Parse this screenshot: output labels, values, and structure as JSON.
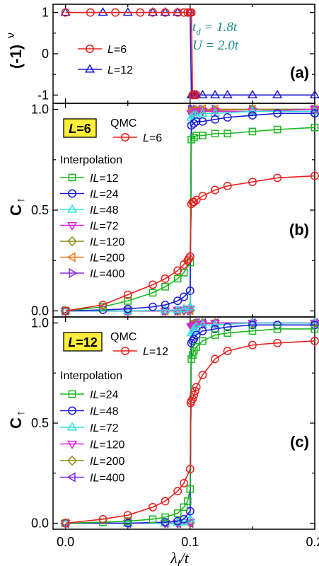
{
  "chart_data": [
    {
      "panel": "a",
      "type": "line",
      "panel_label": "(a)",
      "ylabel": "(-1)",
      "ylabel_sup": "ν",
      "xlim": [
        -0.01,
        0.2
      ],
      "ylim": [
        -1.2,
        1.2
      ],
      "yticks": [
        {
          "v": -1,
          "label": "-1"
        },
        {
          "v": 0,
          "label": "0"
        },
        {
          "v": 1,
          "label": "1"
        }
      ],
      "params": [
        "t",
        "d",
        " = 1.8t",
        "U = 2.0t"
      ],
      "series": [
        {
          "name": "L=6",
          "color": "#e8201c",
          "marker": "circle",
          "x": [
            0,
            0.02,
            0.04,
            0.06,
            0.07,
            0.08,
            0.09,
            0.095,
            0.098,
            0.1,
            0.101,
            0.102,
            0.103,
            0.105
          ],
          "y": [
            1,
            1,
            1,
            1,
            1,
            1,
            1,
            1,
            1,
            1,
            1,
            -1,
            -1,
            -1
          ]
        },
        {
          "name": "L=12",
          "color": "#1c1cd6",
          "marker": "triangle",
          "x": [
            0,
            0.03,
            0.05,
            0.07,
            0.08,
            0.09,
            0.1,
            0.101,
            0.102,
            0.103,
            0.104,
            0.105,
            0.11,
            0.12,
            0.13,
            0.15,
            0.17,
            0.2
          ],
          "y": [
            1,
            1,
            1,
            1,
            1,
            1,
            1,
            -1,
            -1,
            -1,
            -1,
            -1,
            -1,
            -1,
            -1,
            -1,
            -1,
            -1
          ]
        }
      ],
      "legend": [
        {
          "prefix": "",
          "var": "L",
          "text": "=6",
          "series": 0
        },
        {
          "prefix": "",
          "var": "L",
          "text": "=12",
          "series": 1
        }
      ]
    },
    {
      "panel": "b",
      "type": "line",
      "panel_label": "(b)",
      "ylabel": "C",
      "ylabel_sub": "↑",
      "xlim": [
        -0.01,
        0.2
      ],
      "ylim": [
        -0.03,
        1.03
      ],
      "yticks": [
        {
          "v": 0,
          "label": "0.0"
        },
        {
          "v": 0.5,
          "label": "0.5"
        },
        {
          "v": 1,
          "label": "1.0"
        }
      ],
      "box_label": "L=6",
      "qmc_label": "QMC",
      "interp_label": "Interpolation",
      "series": [
        {
          "name": "L=6",
          "color": "#e8201c",
          "marker": "circle",
          "x": [
            0,
            0.03,
            0.05,
            0.07,
            0.08,
            0.09,
            0.095,
            0.098,
            0.099,
            0.1,
            0.101,
            0.102,
            0.103,
            0.105,
            0.11,
            0.12,
            0.13,
            0.15,
            0.17,
            0.2
          ],
          "y": [
            0,
            0.03,
            0.08,
            0.13,
            0.16,
            0.2,
            0.23,
            0.25,
            0.26,
            0.27,
            0.53,
            0.54,
            0.54,
            0.55,
            0.57,
            0.6,
            0.62,
            0.64,
            0.66,
            0.67
          ]
        },
        {
          "name": "IL=12",
          "color": "#19b81c",
          "marker": "square",
          "x": [
            0,
            0.03,
            0.05,
            0.07,
            0.08,
            0.09,
            0.095,
            0.1,
            0.101,
            0.103,
            0.105,
            0.11,
            0.12,
            0.13,
            0.15,
            0.17,
            0.2
          ],
          "y": [
            0,
            0.02,
            0.05,
            0.09,
            0.12,
            0.16,
            0.19,
            0.24,
            0.85,
            0.86,
            0.87,
            0.87,
            0.88,
            0.88,
            0.89,
            0.9,
            0.91
          ]
        },
        {
          "name": "IL=24",
          "color": "#1c1cd6",
          "marker": "circle",
          "x": [
            0,
            0.03,
            0.05,
            0.07,
            0.08,
            0.09,
            0.095,
            0.1,
            0.101,
            0.103,
            0.105,
            0.11,
            0.12,
            0.13,
            0.15,
            0.17,
            0.2
          ],
          "y": [
            0,
            0.005,
            0.01,
            0.02,
            0.03,
            0.05,
            0.07,
            0.1,
            0.92,
            0.93,
            0.94,
            0.94,
            0.95,
            0.96,
            0.97,
            0.98,
            0.98
          ]
        },
        {
          "name": "IL=48",
          "color": "#2de0e0",
          "marker": "triangle",
          "x": [
            0,
            0.05,
            0.08,
            0.09,
            0.095,
            0.1,
            0.101,
            0.103,
            0.105,
            0.11,
            0.12,
            0.15,
            0.2
          ],
          "y": [
            0,
            0,
            0.003,
            0.005,
            0.01,
            0.02,
            0.96,
            0.97,
            0.97,
            0.98,
            0.98,
            0.99,
            0.99
          ]
        },
        {
          "name": "IL=72",
          "color": "#e020e0",
          "marker": "triangle-down",
          "x": [
            0,
            0.05,
            0.08,
            0.09,
            0.095,
            0.1,
            0.101,
            0.103,
            0.105,
            0.11,
            0.12,
            0.15,
            0.2
          ],
          "y": [
            0,
            0,
            0,
            0.002,
            0.004,
            0.01,
            0.98,
            0.98,
            0.99,
            0.99,
            0.99,
            0.99,
            1.0
          ]
        },
        {
          "name": "IL=120",
          "color": "#8a8a10",
          "marker": "diamond",
          "x": [
            0,
            0.05,
            0.08,
            0.09,
            0.095,
            0.1,
            0.101,
            0.103,
            0.105,
            0.11,
            0.12,
            0.15,
            0.2
          ],
          "y": [
            0,
            0,
            0,
            0,
            0.001,
            0.005,
            0.99,
            0.99,
            0.99,
            0.995,
            0.995,
            1.0,
            1.0
          ]
        },
        {
          "name": "IL=200",
          "color": "#f07818",
          "marker": "triangle-left",
          "x": [
            0,
            0.05,
            0.08,
            0.09,
            0.1,
            0.101,
            0.103,
            0.105,
            0.11,
            0.12,
            0.15,
            0.2
          ],
          "y": [
            0,
            0,
            0,
            0,
            0.002,
            0.995,
            0.995,
            0.995,
            1.0,
            1.0,
            1.0,
            1.0
          ]
        },
        {
          "name": "IL=400",
          "color": "#8a2be2",
          "marker": "triangle-right",
          "x": [
            0,
            0.05,
            0.08,
            0.09,
            0.1,
            0.101,
            0.103,
            0.105,
            0.11,
            0.12,
            0.15,
            0.2
          ],
          "y": [
            0,
            0,
            0,
            0,
            0.001,
            0.998,
            0.998,
            1.0,
            1.0,
            1.0,
            1.0,
            1.0
          ]
        }
      ],
      "legend": [
        {
          "prefix": "",
          "var": "L",
          "text": "=6",
          "series": 0
        },
        {
          "prefix": "",
          "var": "IL",
          "text": "=12",
          "series": 1
        },
        {
          "prefix": "",
          "var": "IL",
          "text": "=24",
          "series": 2
        },
        {
          "prefix": "",
          "var": "IL",
          "text": "=48",
          "series": 3
        },
        {
          "prefix": "",
          "var": "IL",
          "text": "=72",
          "series": 4
        },
        {
          "prefix": "",
          "var": "IL",
          "text": "=120",
          "series": 5
        },
        {
          "prefix": "",
          "var": "IL",
          "text": "=200",
          "series": 6
        },
        {
          "prefix": "",
          "var": "IL",
          "text": "=400",
          "series": 7
        }
      ]
    },
    {
      "panel": "c",
      "type": "line",
      "panel_label": "(c)",
      "ylabel": "C",
      "ylabel_sub": "↑",
      "xlabel": "λ",
      "xlabel_sub": "I",
      "xlabel_tail": "/t",
      "xlim": [
        -0.01,
        0.2
      ],
      "ylim": [
        -0.03,
        1.03
      ],
      "xticks": [
        {
          "v": 0,
          "label": "0.0"
        },
        {
          "v": 0.1,
          "label": "0.1"
        },
        {
          "v": 0.2,
          "label": "0.2"
        }
      ],
      "yticks": [
        {
          "v": 0,
          "label": "0.0"
        },
        {
          "v": 0.5,
          "label": "0.5"
        },
        {
          "v": 1,
          "label": "1.0"
        }
      ],
      "box_label": "L=12",
      "qmc_label": "QMC",
      "interp_label": "Interpolation",
      "series": [
        {
          "name": "L=12",
          "color": "#e8201c",
          "marker": "circle",
          "x": [
            0,
            0.03,
            0.05,
            0.07,
            0.08,
            0.09,
            0.095,
            0.1,
            0.1005,
            0.101,
            0.102,
            0.103,
            0.104,
            0.105,
            0.11,
            0.12,
            0.13,
            0.15,
            0.17,
            0.2
          ],
          "y": [
            0,
            0.02,
            0.04,
            0.08,
            0.11,
            0.16,
            0.2,
            0.27,
            0.6,
            0.61,
            0.62,
            0.64,
            0.66,
            0.68,
            0.74,
            0.82,
            0.86,
            0.89,
            0.9,
            0.91
          ]
        },
        {
          "name": "IL=24",
          "color": "#19b81c",
          "marker": "square",
          "x": [
            0,
            0.03,
            0.05,
            0.07,
            0.08,
            0.09,
            0.095,
            0.098,
            0.1,
            0.101,
            0.102,
            0.103,
            0.105,
            0.11,
            0.12,
            0.13,
            0.15,
            0.17,
            0.2
          ],
          "y": [
            0,
            0.005,
            0.01,
            0.02,
            0.03,
            0.05,
            0.08,
            0.11,
            0.17,
            0.82,
            0.84,
            0.86,
            0.88,
            0.91,
            0.94,
            0.95,
            0.96,
            0.97,
            0.97
          ]
        },
        {
          "name": "IL=48",
          "color": "#1c1cd6",
          "marker": "circle",
          "x": [
            0,
            0.05,
            0.08,
            0.09,
            0.095,
            0.1,
            0.101,
            0.102,
            0.103,
            0.105,
            0.11,
            0.12,
            0.13,
            0.15,
            0.17,
            0.2
          ],
          "y": [
            0,
            0,
            0.005,
            0.01,
            0.02,
            0.06,
            0.9,
            0.91,
            0.92,
            0.94,
            0.96,
            0.97,
            0.98,
            0.99,
            0.99,
            0.99
          ]
        },
        {
          "name": "IL=72",
          "color": "#2de0e0",
          "marker": "triangle",
          "x": [
            0,
            0.05,
            0.08,
            0.09,
            0.095,
            0.1,
            0.101,
            0.102,
            0.103,
            0.105,
            0.11,
            0.12,
            0.15,
            0.2
          ],
          "y": [
            0,
            0,
            0,
            0.003,
            0.006,
            0.02,
            0.95,
            0.96,
            0.97,
            0.98,
            0.99,
            0.99,
            1.0,
            1.0
          ]
        },
        {
          "name": "IL=120",
          "color": "#e020e0",
          "marker": "triangle-down",
          "x": [
            0,
            0.05,
            0.08,
            0.09,
            0.1,
            0.101,
            0.102,
            0.103,
            0.105,
            0.11,
            0.12,
            0.15,
            0.2
          ],
          "y": [
            0,
            0,
            0,
            0,
            0.005,
            0.98,
            0.98,
            0.99,
            0.99,
            0.995,
            1.0,
            1.0,
            1.0
          ]
        },
        {
          "name": "IL=200",
          "color": "#8a8a10",
          "marker": "diamond",
          "x": [
            0,
            0.05,
            0.08,
            0.09,
            0.1,
            0.101,
            0.102,
            0.103,
            0.105,
            0.11,
            0.12,
            0.15,
            0.2
          ],
          "y": [
            0,
            0,
            0,
            0,
            0.002,
            0.99,
            0.99,
            0.995,
            0.995,
            1.0,
            1.0,
            1.0,
            1.0
          ]
        },
        {
          "name": "IL=400",
          "color": "#8a2be2",
          "marker": "triangle-left",
          "x": [
            0,
            0.05,
            0.08,
            0.09,
            0.1,
            0.101,
            0.102,
            0.103,
            0.105,
            0.11,
            0.12,
            0.15,
            0.2
          ],
          "y": [
            0,
            0,
            0,
            0,
            0.001,
            0.995,
            0.995,
            1.0,
            1.0,
            1.0,
            1.0,
            1.0,
            1.0
          ]
        }
      ],
      "legend": [
        {
          "prefix": "",
          "var": "L",
          "text": "=12",
          "series": 0
        },
        {
          "prefix": "",
          "var": "IL",
          "text": "=24",
          "series": 1
        },
        {
          "prefix": "",
          "var": "IL",
          "text": "=48",
          "series": 2
        },
        {
          "prefix": "",
          "var": "IL",
          "text": "=72",
          "series": 3
        },
        {
          "prefix": "",
          "var": "IL",
          "text": "=120",
          "series": 4
        },
        {
          "prefix": "",
          "var": "IL",
          "text": "=200",
          "series": 5
        },
        {
          "prefix": "",
          "var": "IL",
          "text": "=400",
          "series": 6
        }
      ]
    }
  ]
}
